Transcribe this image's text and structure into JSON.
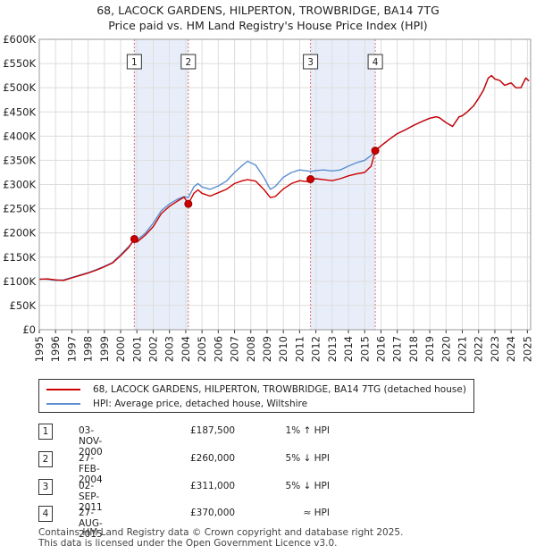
{
  "title": "68, LACOCK GARDENS, HILPERTON, TROWBRIDGE, BA14 7TG",
  "subtitle": "Price paid vs. HM Land Registry's House Price Index (HPI)",
  "chart_data": {
    "type": "line",
    "title": "68, LACOCK GARDENS, HILPERTON, TROWBRIDGE, BA14 7TG",
    "subtitle": "Price paid vs. HM Land Registry's House Price Index (HPI)",
    "xlim": [
      1995,
      2025.2
    ],
    "ylim": [
      0,
      600000
    ],
    "y_ticks": [
      0,
      50000,
      100000,
      150000,
      200000,
      250000,
      300000,
      350000,
      400000,
      450000,
      500000,
      550000,
      600000
    ],
    "y_tick_labels": [
      "£0",
      "£50K",
      "£100K",
      "£150K",
      "£200K",
      "£250K",
      "£300K",
      "£350K",
      "£400K",
      "£450K",
      "£500K",
      "£550K",
      "£600K"
    ],
    "x_ticks": [
      1995,
      1996,
      1997,
      1998,
      1999,
      2000,
      2001,
      2002,
      2003,
      2004,
      2005,
      2006,
      2007,
      2008,
      2009,
      2010,
      2011,
      2012,
      2013,
      2014,
      2015,
      2016,
      2017,
      2018,
      2019,
      2020,
      2021,
      2022,
      2023,
      2024,
      2025
    ],
    "grid": true,
    "series": [
      {
        "name": "68, LACOCK GARDENS, HILPERTON, TROWBRIDGE, BA14 7TG (detached house)",
        "color": "#cc0000",
        "points": [
          [
            1995.0,
            104000
          ],
          [
            1995.5,
            105000
          ],
          [
            1996.0,
            103000
          ],
          [
            1996.5,
            102000
          ],
          [
            1997.0,
            107000
          ],
          [
            1997.5,
            112000
          ],
          [
            1998.0,
            117000
          ],
          [
            1998.5,
            123000
          ],
          [
            1999.0,
            130000
          ],
          [
            1999.5,
            138000
          ],
          [
            2000.0,
            153000
          ],
          [
            2000.5,
            170000
          ],
          [
            2000.84,
            187500
          ],
          [
            2001.0,
            181000
          ],
          [
            2001.5,
            195000
          ],
          [
            2002.0,
            213000
          ],
          [
            2002.5,
            240000
          ],
          [
            2003.0,
            255000
          ],
          [
            2003.5,
            266000
          ],
          [
            2003.9,
            274000
          ],
          [
            2004.16,
            260000
          ],
          [
            2004.5,
            282000
          ],
          [
            2004.75,
            289000
          ],
          [
            2005.0,
            282000
          ],
          [
            2005.5,
            276000
          ],
          [
            2006.0,
            283000
          ],
          [
            2006.5,
            290000
          ],
          [
            2007.0,
            302000
          ],
          [
            2007.5,
            308000
          ],
          [
            2007.8,
            310000
          ],
          [
            2008.3,
            307000
          ],
          [
            2008.8,
            290000
          ],
          [
            2009.2,
            273000
          ],
          [
            2009.5,
            275000
          ],
          [
            2010.0,
            291000
          ],
          [
            2010.5,
            302000
          ],
          [
            2011.0,
            308000
          ],
          [
            2011.5,
            306000
          ],
          [
            2011.67,
            311000
          ],
          [
            2012.0,
            312000
          ],
          [
            2012.5,
            310000
          ],
          [
            2013.0,
            308000
          ],
          [
            2013.5,
            312000
          ],
          [
            2014.0,
            318000
          ],
          [
            2014.5,
            322000
          ],
          [
            2015.0,
            325000
          ],
          [
            2015.4,
            338000
          ],
          [
            2015.65,
            370000
          ],
          [
            2016.0,
            380000
          ],
          [
            2016.5,
            393000
          ],
          [
            2017.0,
            405000
          ],
          [
            2017.5,
            413000
          ],
          [
            2018.0,
            422000
          ],
          [
            2018.5,
            430000
          ],
          [
            2019.0,
            437000
          ],
          [
            2019.4,
            440000
          ],
          [
            2019.6,
            438000
          ],
          [
            2020.0,
            428000
          ],
          [
            2020.4,
            420000
          ],
          [
            2020.8,
            440000
          ],
          [
            2021.0,
            442000
          ],
          [
            2021.3,
            450000
          ],
          [
            2021.7,
            463000
          ],
          [
            2022.0,
            478000
          ],
          [
            2022.3,
            495000
          ],
          [
            2022.6,
            520000
          ],
          [
            2022.8,
            525000
          ],
          [
            2023.0,
            518000
          ],
          [
            2023.3,
            515000
          ],
          [
            2023.6,
            505000
          ],
          [
            2024.0,
            510000
          ],
          [
            2024.3,
            500000
          ],
          [
            2024.6,
            500000
          ],
          [
            2024.9,
            520000
          ],
          [
            2025.1,
            514000
          ]
        ]
      },
      {
        "name": "HPI: Average price, detached house, Wiltshire",
        "color": "#5b8fd0",
        "points": [
          [
            1995.0,
            105000
          ],
          [
            1995.5,
            104000
          ],
          [
            1996.0,
            102000
          ],
          [
            1996.5,
            103000
          ],
          [
            1997.0,
            108000
          ],
          [
            1997.5,
            113000
          ],
          [
            1998.0,
            118000
          ],
          [
            1998.5,
            124000
          ],
          [
            1999.0,
            131000
          ],
          [
            1999.5,
            139000
          ],
          [
            2000.0,
            155000
          ],
          [
            2000.5,
            172000
          ],
          [
            2000.84,
            186000
          ],
          [
            2001.0,
            185000
          ],
          [
            2001.5,
            199000
          ],
          [
            2002.0,
            220000
          ],
          [
            2002.5,
            246000
          ],
          [
            2003.0,
            260000
          ],
          [
            2003.5,
            270000
          ],
          [
            2003.9,
            275000
          ],
          [
            2004.16,
            273000
          ],
          [
            2004.5,
            295000
          ],
          [
            2004.75,
            302000
          ],
          [
            2005.0,
            295000
          ],
          [
            2005.5,
            290000
          ],
          [
            2006.0,
            297000
          ],
          [
            2006.5,
            307000
          ],
          [
            2007.0,
            325000
          ],
          [
            2007.5,
            340000
          ],
          [
            2007.8,
            348000
          ],
          [
            2008.3,
            340000
          ],
          [
            2008.8,
            315000
          ],
          [
            2009.2,
            290000
          ],
          [
            2009.5,
            296000
          ],
          [
            2010.0,
            315000
          ],
          [
            2010.5,
            325000
          ],
          [
            2011.0,
            330000
          ],
          [
            2011.5,
            328000
          ],
          [
            2011.67,
            327000
          ],
          [
            2012.0,
            329000
          ],
          [
            2012.5,
            330000
          ],
          [
            2013.0,
            328000
          ],
          [
            2013.5,
            330000
          ],
          [
            2014.0,
            338000
          ],
          [
            2014.5,
            345000
          ],
          [
            2015.0,
            350000
          ],
          [
            2015.4,
            360000
          ],
          [
            2015.65,
            370000
          ],
          [
            2016.0,
            380000
          ],
          [
            2016.5,
            393000
          ],
          [
            2017.0,
            405000
          ],
          [
            2017.5,
            413000
          ],
          [
            2018.0,
            422000
          ],
          [
            2018.5,
            430000
          ],
          [
            2019.0,
            437000
          ],
          [
            2019.4,
            440000
          ],
          [
            2019.6,
            438000
          ],
          [
            2020.0,
            428000
          ],
          [
            2020.4,
            420000
          ],
          [
            2020.8,
            440000
          ],
          [
            2021.0,
            442000
          ],
          [
            2021.3,
            450000
          ],
          [
            2021.7,
            463000
          ],
          [
            2022.0,
            478000
          ],
          [
            2022.3,
            495000
          ],
          [
            2022.6,
            520000
          ],
          [
            2022.8,
            525000
          ],
          [
            2023.0,
            518000
          ],
          [
            2023.3,
            515000
          ],
          [
            2023.6,
            505000
          ],
          [
            2024.0,
            510000
          ],
          [
            2024.3,
            500000
          ],
          [
            2024.6,
            500000
          ],
          [
            2024.9,
            520000
          ],
          [
            2025.1,
            514000
          ]
        ]
      }
    ],
    "sales": [
      {
        "label": "1",
        "x": 2000.84,
        "price": 187500
      },
      {
        "label": "2",
        "x": 2004.16,
        "price": 260000
      },
      {
        "label": "3",
        "x": 2011.67,
        "price": 311000
      },
      {
        "label": "4",
        "x": 2015.65,
        "price": 370000
      }
    ],
    "shaded_ranges": [
      [
        2000.84,
        2004.16
      ],
      [
        2011.67,
        2015.65
      ]
    ]
  },
  "legend": {
    "property_label": "68, LACOCK GARDENS, HILPERTON, TROWBRIDGE, BA14 7TG (detached house)",
    "hpi_label": "HPI: Average price, detached house, Wiltshire",
    "property_color": "#cc0000",
    "hpi_color": "#5b8fd0"
  },
  "transactions": [
    {
      "num": "1",
      "date": "03-NOV-2000",
      "price": "£187,500",
      "hpi": "1% ↑ HPI"
    },
    {
      "num": "2",
      "date": "27-FEB-2004",
      "price": "£260,000",
      "hpi": "5% ↓ HPI"
    },
    {
      "num": "3",
      "date": "02-SEP-2011",
      "price": "£311,000",
      "hpi": "5% ↓ HPI"
    },
    {
      "num": "4",
      "date": "27-AUG-2015",
      "price": "£370,000",
      "hpi": "≈ HPI"
    }
  ],
  "footer": {
    "line1": "Contains HM Land Registry data © Crown copyright and database right 2025.",
    "line2": "This data is licensed under the Open Government Licence v3.0."
  }
}
